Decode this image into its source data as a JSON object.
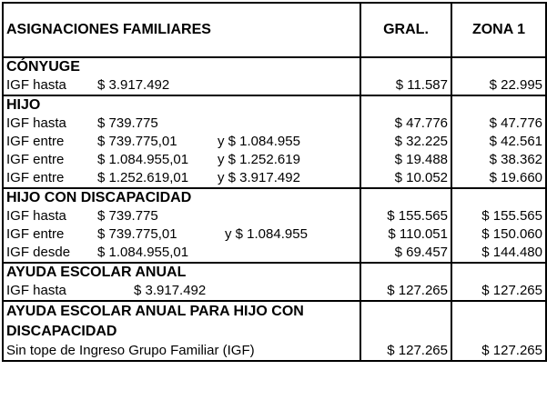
{
  "header": {
    "title": "ASIGNACIONES FAMILIARES",
    "col_gral": "GRAL.",
    "col_zona": "ZONA 1"
  },
  "sections": [
    {
      "title": "CÓNYUGE",
      "rows": [
        {
          "a": "IGF hasta",
          "b": "$ 3.917.492",
          "c": "",
          "gral": "$ 11.587",
          "zona": "$ 22.995"
        }
      ]
    },
    {
      "title": "HIJO",
      "rows": [
        {
          "a": "IGF hasta",
          "b": "$ 739.775",
          "c": "",
          "gral": "$ 47.776",
          "zona": "$ 47.776"
        },
        {
          "a": "IGF entre",
          "b": "$ 739.775,01",
          "c": "y $ 1.084.955",
          "gral": "$ 32.225",
          "zona": "$ 42.561"
        },
        {
          "a": "IGF entre",
          "b": "$ 1.084.955,01",
          "c": "y $ 1.252.619",
          "gral": "$ 19.488",
          "zona": "$ 38.362"
        },
        {
          "a": "IGF entre",
          "b": "$ 1.252.619,01",
          "c": "y $ 3.917.492",
          "gral": "$ 10.052",
          "zona": "$ 19.660"
        }
      ]
    },
    {
      "title": "HIJO CON DISCAPACIDAD",
      "rows": [
        {
          "a": "IGF hasta",
          "b": "$ 739.775",
          "c": "",
          "gral": "$ 155.565",
          "zona": "$ 155.565"
        },
        {
          "a": "IGF entre",
          "b": "$ 739.775,01",
          "c": "y $ 1.084.955",
          "gral": "$ 110.051",
          "zona": "$ 150.060"
        },
        {
          "a": "IGF desde",
          "b": "$ 1.084.955,01",
          "c": "",
          "gral": "$ 69.457",
          "zona": "$ 144.480"
        }
      ]
    },
    {
      "title": "AYUDA ESCOLAR ANUAL",
      "rows": [
        {
          "a": "IGF hasta",
          "b": "$ 3.917.492",
          "c": "",
          "gral": "$ 127.265",
          "zona": "$ 127.265"
        }
      ]
    },
    {
      "title": "AYUDA ESCOLAR ANUAL PARA HIJO CON DISCAPACIDAD",
      "rows": [
        {
          "a": "Sin tope de Ingreso Grupo Familiar (IGF)",
          "b": "",
          "c": "",
          "gral": "$ 127.265",
          "zona": "$ 127.265"
        }
      ]
    }
  ]
}
